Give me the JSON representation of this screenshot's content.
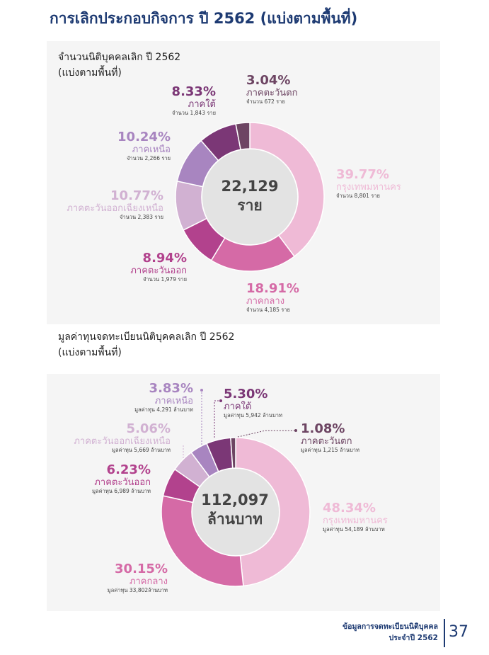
{
  "page_title": "การเลิกประกอบกิจการ ปี 2562  (แบ่งตามพื้นที่)",
  "colors": {
    "title": "#1d3a72",
    "center_disc": "#e3e3e3",
    "regions": {
      "กรุงเทพมหานคร": "#efbad6",
      "ภาคกลาง": "#d56aa6",
      "ภาคตะวันออก": "#b2428d",
      "ภาคตะวันออกเฉียงเหนือ": "#d1b1d2",
      "ภาคเหนือ": "#a885c0",
      "ภาคใต้": "#7b3776",
      "ภาคตะวันตก": "#6d4563"
    }
  },
  "chart_data": [
    {
      "type": "pie",
      "title_line1": "จำนวนนิติบุคคลเลิก ปี 2562",
      "title_line2": "(แบ่งตามพื้นที่)",
      "center_value": "22,129",
      "center_unit": "ราย",
      "categories": [
        "กรุงเทพมหานคร",
        "ภาคกลาง",
        "ภาคตะวันออก",
        "ภาคตะวันออกเฉียงเหนือ",
        "ภาคเหนือ",
        "ภาคใต้",
        "ภาคตะวันตก"
      ],
      "values": [
        39.77,
        18.91,
        8.94,
        10.77,
        10.24,
        8.33,
        3.04
      ],
      "labels": [
        {
          "pct": "39.77%",
          "region": "กรุงเทพมหานคร",
          "detail": "จำนวน 8,801 ราย"
        },
        {
          "pct": "18.91%",
          "region": "ภาคกลาง",
          "detail": "จำนวน 4,185 ราย"
        },
        {
          "pct": "8.94%",
          "region": "ภาคตะวันออก",
          "detail": "จำนวน 1,979 ราย"
        },
        {
          "pct": "10.77%",
          "region": "ภาคตะวันออกเฉียงเหนือ",
          "detail": "จำนวน 2,383 ราย"
        },
        {
          "pct": "10.24%",
          "region": "ภาคเหนือ",
          "detail": "จำนวน 2,266 ราย"
        },
        {
          "pct": "8.33%",
          "region": "ภาคใต้",
          "detail": "จำนวน 1,843 ราย"
        },
        {
          "pct": "3.04%",
          "region": "ภาคตะวันตก",
          "detail": "จำนวน 672 ราย"
        }
      ]
    },
    {
      "type": "pie",
      "title_line1": "มูลค่าทุนจดทะเบียนนิติบุคคลเลิก ปี 2562",
      "title_line2": "(แบ่งตามพื้นที่)",
      "center_value": "112,097",
      "center_unit": "ล้านบาท",
      "categories": [
        "กรุงเทพมหานคร",
        "ภาคกลาง",
        "ภาคตะวันออก",
        "ภาคตะวันออกเฉียงเหนือ",
        "ภาคเหนือ",
        "ภาคใต้",
        "ภาคตะวันตก"
      ],
      "values": [
        48.34,
        30.15,
        6.23,
        5.06,
        3.83,
        5.3,
        1.08
      ],
      "labels": [
        {
          "pct": "48.34%",
          "region": "กรุงเทพมหานคร",
          "detail": "มูลค่าทุน 54,189 ล้านบาท"
        },
        {
          "pct": "30.15%",
          "region": "ภาคกลาง",
          "detail": "มูลค่าทุน 33,802ล้านบาท"
        },
        {
          "pct": "6.23%",
          "region": "ภาคตะวันออก",
          "detail": "มูลค่าทุน 6,989 ล้านบาท"
        },
        {
          "pct": "5.06%",
          "region": "ภาคตะวันออกเฉียงเหนือ",
          "detail": "มูลค่าทุน 5,669 ล้านบาท"
        },
        {
          "pct": "3.83%",
          "region": "ภาคเหนือ",
          "detail": "มูลค่าทุน 4,291 ล้านบาท"
        },
        {
          "pct": "5.30%",
          "region": "ภาคใต้",
          "detail": "มูลค่าทุน 5,942 ล้านบาท"
        },
        {
          "pct": "1.08%",
          "region": "ภาคตะวันตก",
          "detail": "มูลค่าทุน 1,215 ล้านบาท"
        }
      ]
    }
  ],
  "footer": {
    "line1": "ข้อมูลการจดทะเบียนนิติบุคคล",
    "line2": "ประจำปี 2562",
    "page_number": "37"
  }
}
